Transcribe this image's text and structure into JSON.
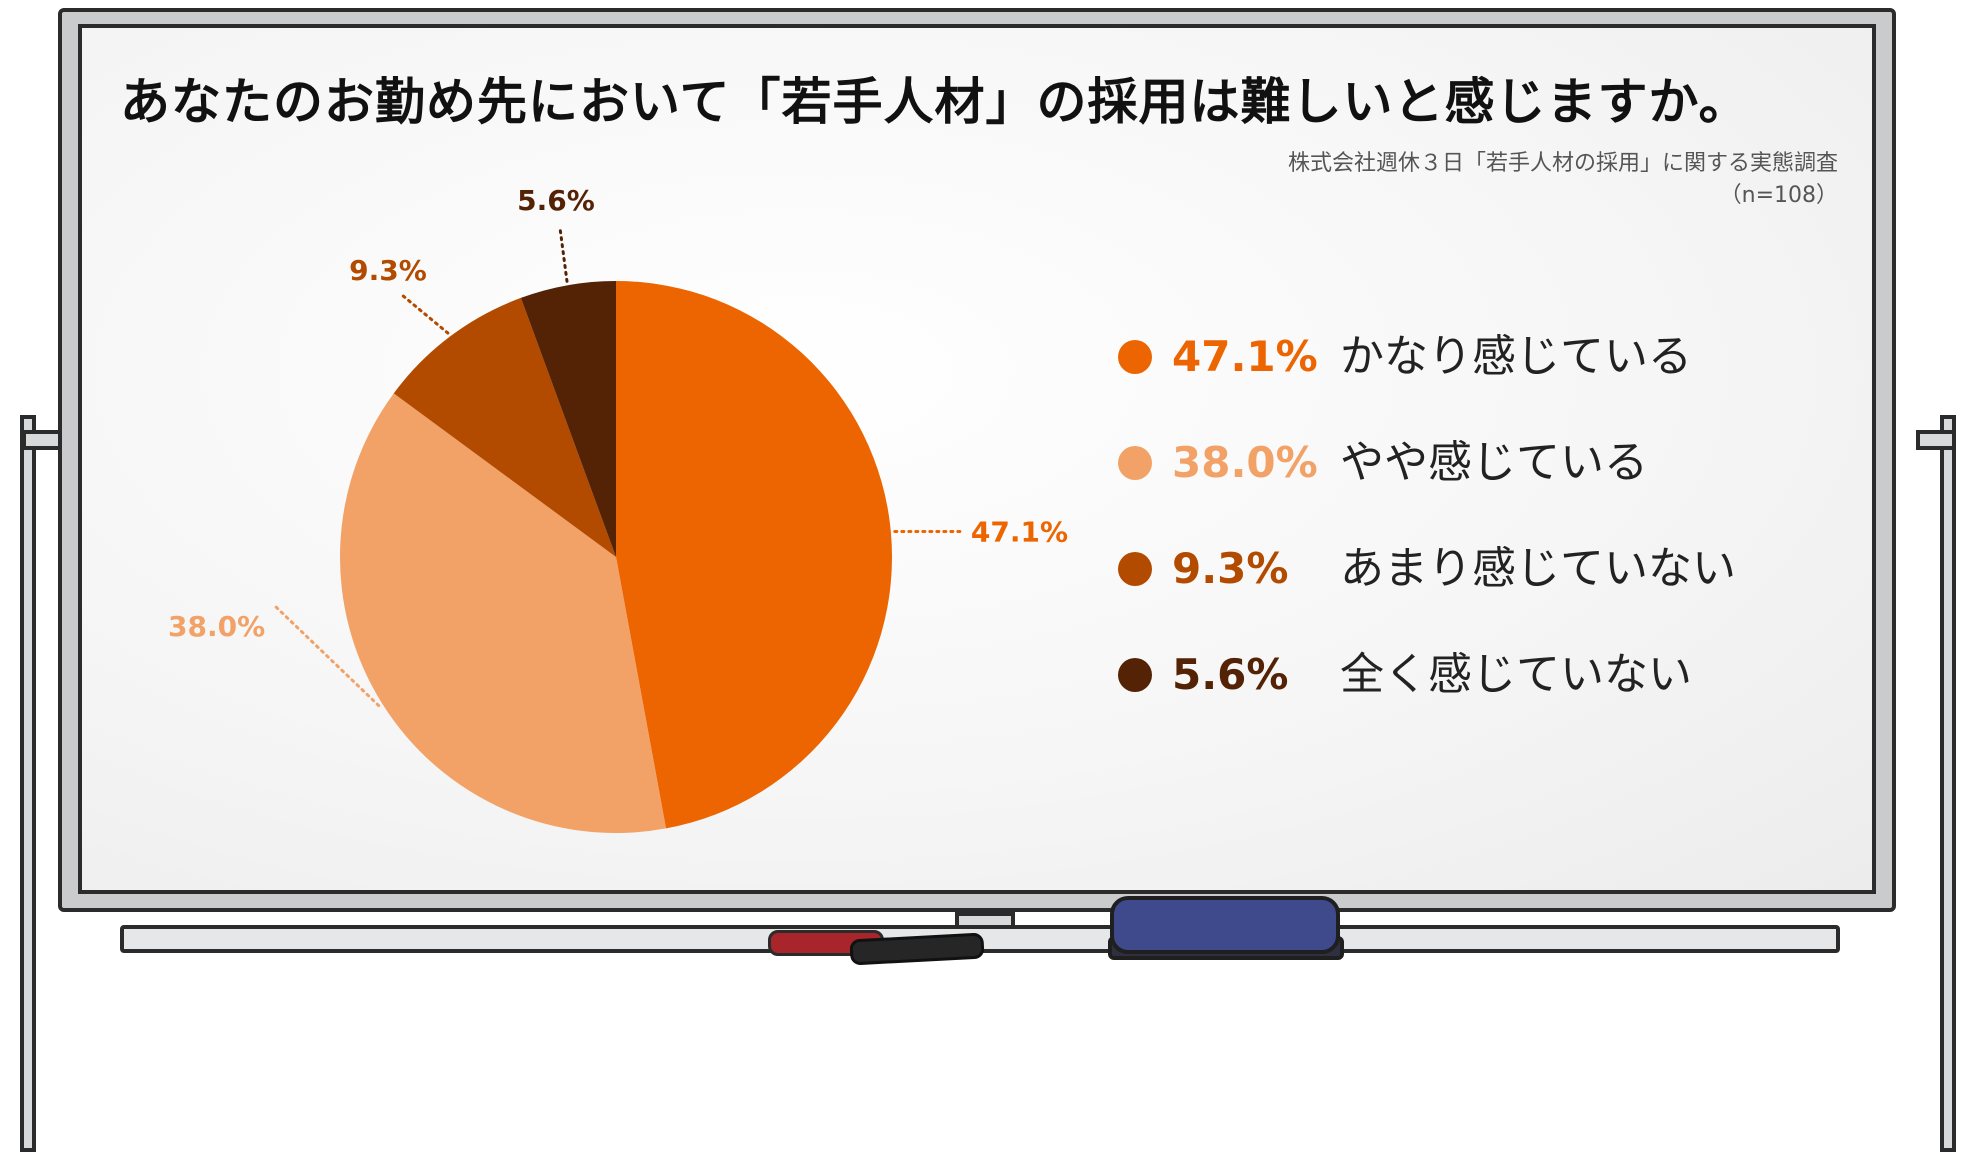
{
  "title": "あなたのお勤め先において「若手人材」の採用は難しいと感じますか。",
  "source_line1": "株式会社週休３日「若手人材の採用」に関する実態調査",
  "source_line2": "（n=108）",
  "chart_data": {
    "type": "pie",
    "title": "あなたのお勤め先において「若手人材」の採用は難しいと感じますか。",
    "slices": [
      {
        "label": "かなり感じている",
        "value": 47.1,
        "display": "47.1%",
        "color": "#ec6500"
      },
      {
        "label": "やや感じている",
        "value": 38.0,
        "display": "38.0%",
        "color": "#f2a167"
      },
      {
        "label": "あまり感じていない",
        "value": 9.3,
        "display": "9.3%",
        "color": "#b24b00"
      },
      {
        "label": "全く感じていない",
        "value": 5.6,
        "display": "5.6%",
        "color": "#542306"
      }
    ],
    "start": "12 o'clock",
    "direction": "clockwise",
    "legend_position": "right"
  }
}
